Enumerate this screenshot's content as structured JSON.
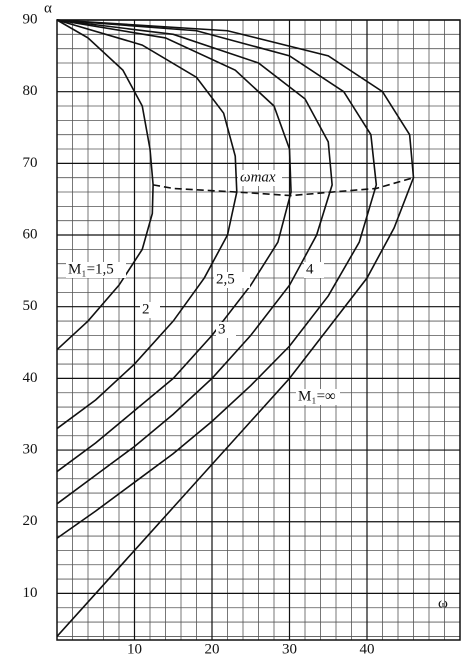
{
  "chart_data": {
    "type": "line",
    "x_label": "ω",
    "y_label": "α",
    "xlim": [
      0,
      52
    ],
    "ylim": [
      3.5,
      90
    ],
    "xticks": [
      10,
      20,
      30,
      40
    ],
    "yticks": [
      10,
      20,
      30,
      40,
      50,
      60,
      70,
      80,
      90
    ],
    "x_minor_grid": [
      2,
      4,
      6,
      8,
      12,
      14,
      16,
      18,
      22,
      24,
      26,
      28,
      32,
      34,
      36,
      38,
      42,
      44,
      46,
      48,
      50
    ],
    "y_minor_grid": [
      4,
      6,
      8,
      12,
      14,
      16,
      18,
      22,
      24,
      26,
      28,
      32,
      34,
      36,
      38,
      42,
      44,
      46,
      48,
      52,
      54,
      56,
      58,
      62,
      64,
      66,
      68,
      72,
      74,
      76,
      78,
      82,
      84,
      86,
      88
    ],
    "grid": true,
    "series": [
      {
        "name": "M₁=1,5",
        "color": "#111",
        "x": [
          0,
          4,
          8,
          11,
          12.3,
          12.4,
          12,
          11,
          8.5,
          4,
          0
        ],
        "values": [
          44,
          48,
          53,
          58,
          63,
          67,
          72,
          78,
          83,
          87.5,
          90
        ]
      },
      {
        "name": "2",
        "color": "#111",
        "x": [
          0,
          5,
          10,
          15,
          19,
          22,
          23.2,
          23,
          21.5,
          18,
          11,
          0
        ],
        "values": [
          33,
          37,
          42,
          48,
          54,
          60,
          66,
          71,
          77,
          82,
          86.5,
          90
        ]
      },
      {
        "name": "2,5",
        "color": "#111",
        "x": [
          0,
          5,
          10,
          15,
          20,
          25,
          28.5,
          30.2,
          30,
          28,
          23,
          14,
          0
        ],
        "values": [
          27,
          31,
          35.5,
          40,
          46,
          53,
          59,
          66,
          72,
          78,
          83,
          87.5,
          90
        ]
      },
      {
        "name": "3",
        "color": "#111",
        "x": [
          0,
          5,
          10,
          15,
          20,
          25,
          30,
          33.5,
          35.5,
          35,
          32,
          26,
          15,
          0
        ],
        "values": [
          22.5,
          26.5,
          30.5,
          35,
          40,
          46,
          53,
          60,
          67,
          73,
          79,
          84,
          88,
          90
        ]
      },
      {
        "name": "4",
        "color": "#111",
        "x": [
          0,
          5,
          10,
          15,
          20,
          25,
          30,
          35,
          39,
          41.2,
          40.5,
          37,
          30,
          18,
          0
        ],
        "values": [
          17.7,
          21.5,
          25.5,
          29.5,
          34,
          39,
          44.5,
          51.5,
          59,
          67,
          74,
          80,
          85,
          88.5,
          90
        ]
      },
      {
        "name": "M₁=∞",
        "color": "#111",
        "x": [
          0,
          5,
          10,
          15,
          20,
          25,
          30,
          35,
          40,
          43.5,
          46,
          45.5,
          42,
          35,
          22,
          0
        ],
        "values": [
          4,
          10,
          16,
          22,
          28,
          34,
          40,
          47,
          54,
          61,
          68,
          74,
          80,
          85,
          88.5,
          90
        ]
      },
      {
        "name": "ωmax",
        "color": "#111",
        "dashed": true,
        "x": [
          12.4,
          15,
          23.2,
          30.2,
          35.5,
          41.2,
          46
        ],
        "values": [
          67,
          66.5,
          66,
          65.5,
          66,
          66.5,
          68
        ]
      }
    ]
  }
}
